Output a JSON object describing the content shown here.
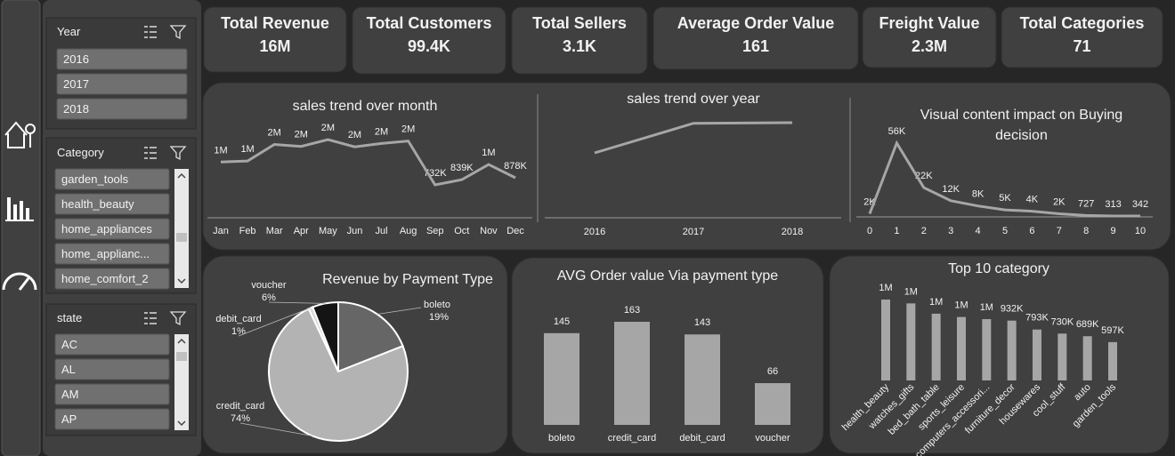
{
  "kpis": [
    {
      "title": "Total Revenue",
      "value": "16M"
    },
    {
      "title": "Total Customers",
      "value": "99.4K"
    },
    {
      "title": "Total Sellers",
      "value": "3.1K"
    },
    {
      "title": "Average Order Value",
      "value": "161"
    },
    {
      "title": "Freight Value",
      "value": "2.3M"
    },
    {
      "title": "Total Categories",
      "value": "71"
    }
  ],
  "slicers": [
    {
      "title": "Year",
      "items": [
        "2016",
        "2017",
        "2018"
      ]
    },
    {
      "title": "Category",
      "items": [
        "garden_tools",
        "health_beauty",
        "home_appliances",
        "home_applianc...",
        "home_comfort_2"
      ]
    },
    {
      "title": "state",
      "items": [
        "AC",
        "AL",
        "AM",
        "AP"
      ]
    }
  ],
  "chart_data": [
    {
      "type": "line",
      "title": "sales trend over month",
      "categories": [
        "Jan",
        "Feb",
        "Mar",
        "Apr",
        "May",
        "Jun",
        "Jul",
        "Aug",
        "Sep",
        "Oct",
        "Nov",
        "Dec"
      ],
      "values": [
        1200000,
        1220000,
        1560000,
        1520000,
        1660000,
        1510000,
        1580000,
        1630000,
        732000,
        839000,
        1150000,
        878000
      ],
      "value_labels": [
        "1M",
        "1M",
        "2M",
        "2M",
        "2M",
        "2M",
        "2M",
        "2M",
        "732K",
        "839K",
        "1M",
        "878K"
      ],
      "color": "#a6a6a6"
    },
    {
      "type": "line",
      "title": "sales trend over year",
      "categories": [
        "2016",
        "2017",
        "2018"
      ],
      "values": [
        50000,
        7100000,
        7250000
      ],
      "color": "#a6a6a6"
    },
    {
      "type": "line",
      "title": "Visual content impact on Buying decision",
      "categories": [
        "0",
        "1",
        "2",
        "3",
        "4",
        "5",
        "6",
        "7",
        "8",
        "9",
        "10"
      ],
      "values": [
        2000,
        56000,
        22000,
        12000,
        8000,
        5000,
        4000,
        2000,
        727,
        313,
        342
      ],
      "value_labels": [
        "2K",
        "56K",
        "22K",
        "12K",
        "8K",
        "5K",
        "4K",
        "2K",
        "727",
        "313",
        "342"
      ],
      "color": "#a6a6a6"
    },
    {
      "type": "pie",
      "title": "Revenue by Payment Type",
      "categories": [
        "boleto",
        "credit_card",
        "debit_card",
        "voucher"
      ],
      "values": [
        19,
        74,
        1,
        6
      ],
      "value_labels": [
        "19%",
        "74%",
        "1%",
        "6%"
      ],
      "colors": [
        "#666666",
        "#b3b3b3",
        "#d9d9d9",
        "#141414"
      ]
    },
    {
      "type": "bar",
      "title": "AVG Order value Via payment type",
      "categories": [
        "boleto",
        "credit_card",
        "debit_card",
        "voucher"
      ],
      "values": [
        145,
        163,
        143,
        66
      ],
      "color": "#a6a6a6"
    },
    {
      "type": "bar",
      "title": "Top 10 category",
      "categories": [
        "health_beauty",
        "watches_gifts",
        "bed_bath_table",
        "sports_leisure",
        "computers_accessori...",
        "furniture_decor",
        "housewares",
        "cool_stuff",
        "auto",
        "garden_tools"
      ],
      "values": [
        1260000,
        1200000,
        1040000,
        988000,
        955000,
        932000,
        793000,
        730000,
        689000,
        597000
      ],
      "value_labels": [
        "1M",
        "1M",
        "1M",
        "1M",
        "1M",
        "932K",
        "793K",
        "730K",
        "689K",
        "597K"
      ],
      "color": "#a6a6a6"
    }
  ]
}
